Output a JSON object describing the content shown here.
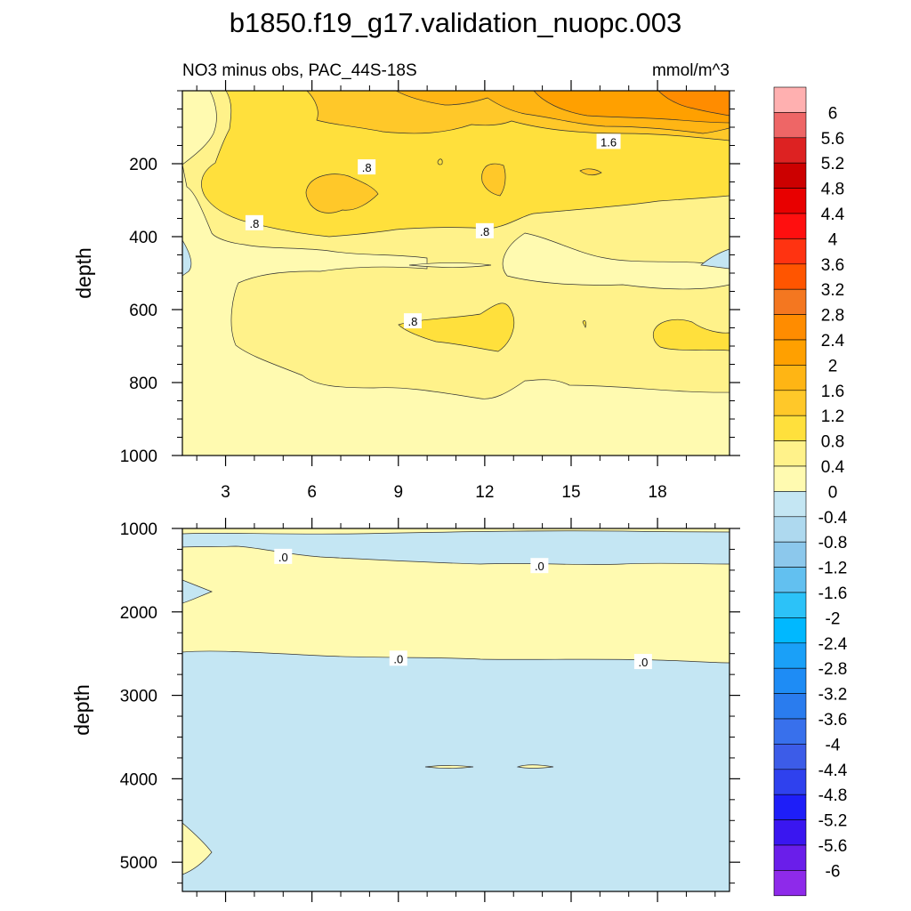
{
  "chart_data": [
    {
      "type": "contour",
      "title": "b1850.f19_g17.validation_nuopc.003",
      "subtitle_left": "NO3 minus obs, PAC_44S-18S",
      "subtitle_right": "mmol/m^3",
      "ylabel": "depth",
      "xlabel": "",
      "xlim": [
        1.5,
        20.5
      ],
      "ylim": [
        1000,
        0
      ],
      "x_ticks": [
        3,
        6,
        9,
        12,
        15,
        18
      ],
      "x_tick_labels": [
        "3",
        "6",
        "9",
        "12",
        "15",
        "18"
      ],
      "y_ticks": [
        200,
        400,
        600,
        800,
        1000
      ],
      "y_tick_labels": [
        "200",
        "400",
        "600",
        "800",
        "1000"
      ],
      "contour_labels": [
        {
          "text": ".8",
          "x": 7.9,
          "depth": 210
        },
        {
          "text": ".8",
          "x": 4.0,
          "depth": 363
        },
        {
          "text": ".8",
          "x": 12.0,
          "depth": 385
        },
        {
          "text": ".8",
          "x": 9.5,
          "depth": 632
        },
        {
          "text": "1.6",
          "x": 16.3,
          "depth": 140
        }
      ]
    },
    {
      "type": "contour",
      "ylabel": "depth",
      "xlim": [
        1.5,
        20.5
      ],
      "ylim": [
        5350,
        1000
      ],
      "x_ticks": [
        3,
        6,
        9,
        12,
        15,
        18
      ],
      "y_ticks": [
        1000,
        2000,
        3000,
        4000,
        5000
      ],
      "y_tick_labels": [
        "1000",
        "2000",
        "3000",
        "4000",
        "5000"
      ],
      "contour_labels": [
        {
          "text": ".0",
          "x": 5.0,
          "depth": 1340
        },
        {
          "text": ".0",
          "x": 13.9,
          "depth": 1450
        },
        {
          "text": ".0",
          "x": 9.0,
          "depth": 2560
        },
        {
          "text": ".0",
          "x": 17.5,
          "depth": 2600
        }
      ]
    }
  ],
  "colorbar": {
    "labels": [
      "6",
      "5.6",
      "5.2",
      "4.8",
      "4.4",
      "4",
      "3.6",
      "3.2",
      "2.8",
      "2.4",
      "2",
      "1.6",
      "1.2",
      "0.8",
      "0.4",
      "0",
      "-0.4",
      "-0.8",
      "-1.2",
      "-1.6",
      "-2",
      "-2.4",
      "-2.8",
      "-3.2",
      "-3.6",
      "-4",
      "-4.4",
      "-4.8",
      "-5.2",
      "-5.6",
      "-6"
    ],
    "colors": [
      "#FFB0B0",
      "#EE6666",
      "#DD2222",
      "#CC0000",
      "#E80000",
      "#FF0F0F",
      "#FF3311",
      "#FF5500",
      "#F47720",
      "#FF8C00",
      "#FFA000",
      "#FFB514",
      "#FFC829",
      "#FFE03C",
      "#FFF28A",
      "#FFFAB0",
      "#C4E6F3",
      "#AED9EF",
      "#8CC8EC",
      "#62C0F0",
      "#2CC2F8",
      "#00B8FF",
      "#1AA0F8",
      "#1E8CF5",
      "#2A7CEE",
      "#3870EC",
      "#3C5CE8",
      "#2F41EE",
      "#1E1EF8",
      "#3A16F0",
      "#6A1EEA",
      "#8E2AEA"
    ]
  },
  "colors": {
    "c0": "#FFFAB0",
    "c04": "#FFF28A",
    "c08": "#FFE03C",
    "c12": "#FFC829",
    "c16": "#FFB514",
    "c20": "#FFA000",
    "c24": "#FF8C00",
    "neg04": "#C4E6F3"
  }
}
